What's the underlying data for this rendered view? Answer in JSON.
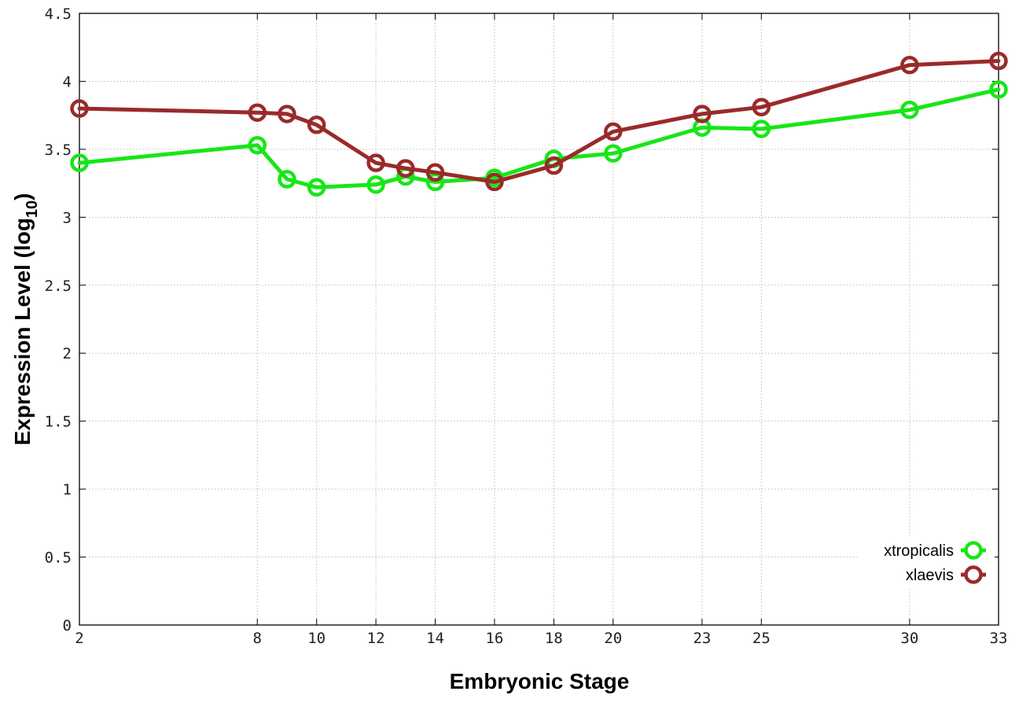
{
  "chart_data": {
    "type": "line",
    "xlabel": "Embryonic Stage",
    "ylabel": "Expression Level (log",
    "ylabel_subscript": "10",
    "ylabel_close": ")",
    "x": [
      2,
      8,
      9,
      10,
      12,
      13,
      14,
      16,
      18,
      20,
      23,
      25,
      30,
      33
    ],
    "x_ticks": [
      "2",
      "8",
      "10",
      "12",
      "14",
      "16",
      "18",
      "20",
      "23",
      "25",
      "30",
      "33"
    ],
    "x_tick_values": [
      2,
      8,
      10,
      12,
      14,
      16,
      18,
      20,
      23,
      25,
      30,
      33
    ],
    "y_ticks": [
      "0",
      "0.5",
      "1",
      "1.5",
      "2",
      "2.5",
      "3",
      "3.5",
      "4",
      "4.5"
    ],
    "y_tick_values": [
      0,
      0.5,
      1,
      1.5,
      2,
      2.5,
      3,
      3.5,
      4,
      4.5
    ],
    "xlim": [
      2,
      33
    ],
    "ylim": [
      0,
      4.5
    ],
    "grid": true,
    "legend_position": "bottom-right",
    "series": [
      {
        "name": "xtropicalis",
        "color": "#17e617",
        "values": [
          3.4,
          3.53,
          3.28,
          3.22,
          3.24,
          3.3,
          3.26,
          3.29,
          3.43,
          3.47,
          3.66,
          3.65,
          3.79,
          3.94
        ]
      },
      {
        "name": "xlaevis",
        "color": "#9a2a2a",
        "values": [
          3.8,
          3.77,
          3.76,
          3.68,
          3.4,
          3.36,
          3.33,
          3.26,
          3.38,
          3.63,
          3.76,
          3.81,
          4.12,
          4.15
        ]
      }
    ]
  }
}
